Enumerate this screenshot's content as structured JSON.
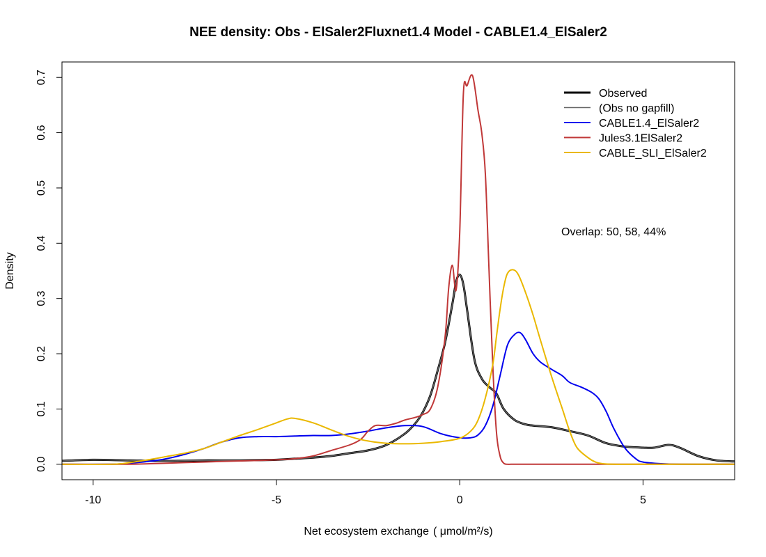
{
  "chart_data": {
    "type": "line",
    "title": "NEE density:   Obs - ElSaler2Fluxnet1.4   Model - CABLE1.4_ElSaler2",
    "xlabel_prefix": "Net ecosystem exchange",
    "xlabel_unit": "( μmol/m²/s)",
    "ylabel": "Density",
    "xlim": [
      -10.85,
      7.5
    ],
    "ylim": [
      -0.028,
      0.728
    ],
    "xticks": [
      -10,
      -5,
      0,
      5
    ],
    "xtick_labels": [
      "-10",
      "-5",
      "0",
      "5"
    ],
    "yticks": [
      0.0,
      0.1,
      0.2,
      0.3,
      0.4,
      0.5,
      0.6,
      0.7
    ],
    "ytick_labels": [
      "0.0",
      "0.1",
      "0.2",
      "0.3",
      "0.4",
      "0.5",
      "0.6",
      "0.7"
    ],
    "grid": false,
    "legend_position": "top-right",
    "annotation": "Overlap: 50, 58, 44%",
    "series": [
      {
        "name": "Observed",
        "color": "#000000",
        "width": 3,
        "x": [
          -10.9,
          -10,
          -9,
          -8,
          -7,
          -6,
          -5,
          -4.5,
          -4,
          -3.5,
          -3,
          -2.5,
          -2,
          -1.5,
          -1.2,
          -1,
          -0.8,
          -0.6,
          -0.4,
          -0.2,
          -0.1,
          0,
          0.1,
          0.2,
          0.4,
          0.6,
          0.8,
          1,
          1.2,
          1.5,
          1.8,
          2,
          2.5,
          3,
          3.5,
          4,
          4.5,
          5,
          5.3,
          5.7,
          6,
          6.5,
          7,
          7.5
        ],
        "y": [
          0.006,
          0.008,
          0.007,
          0.006,
          0.007,
          0.007,
          0.008,
          0.01,
          0.012,
          0.015,
          0.02,
          0.025,
          0.035,
          0.055,
          0.075,
          0.095,
          0.125,
          0.17,
          0.22,
          0.29,
          0.33,
          0.343,
          0.325,
          0.28,
          0.19,
          0.155,
          0.14,
          0.128,
          0.1,
          0.08,
          0.072,
          0.07,
          0.067,
          0.06,
          0.052,
          0.038,
          0.032,
          0.03,
          0.03,
          0.035,
          0.03,
          0.015,
          0.007,
          0.005
        ]
      },
      {
        "name": "(Obs no gapfill)",
        "color": "#666666",
        "width": 1.4,
        "x": [
          -10.9,
          -10,
          -9,
          -8,
          -7,
          -6,
          -5,
          -4.5,
          -4,
          -3.5,
          -3,
          -2.5,
          -2,
          -1.5,
          -1.2,
          -1,
          -0.8,
          -0.6,
          -0.4,
          -0.2,
          -0.1,
          0,
          0.1,
          0.2,
          0.4,
          0.6,
          0.8,
          1,
          1.2,
          1.5,
          1.8,
          2,
          2.5,
          3,
          3.5,
          4,
          4.5,
          5,
          5.3,
          5.7,
          6,
          6.5,
          7,
          7.5
        ],
        "y": [
          0.006,
          0.008,
          0.007,
          0.006,
          0.007,
          0.007,
          0.008,
          0.01,
          0.012,
          0.015,
          0.02,
          0.025,
          0.035,
          0.055,
          0.075,
          0.095,
          0.125,
          0.17,
          0.22,
          0.29,
          0.33,
          0.343,
          0.325,
          0.28,
          0.19,
          0.155,
          0.14,
          0.128,
          0.1,
          0.08,
          0.072,
          0.07,
          0.067,
          0.06,
          0.052,
          0.038,
          0.032,
          0.03,
          0.03,
          0.035,
          0.03,
          0.015,
          0.007,
          0.005
        ]
      },
      {
        "name": "CABLE1.4_ElSaler2",
        "color": "#0000ee",
        "width": 2,
        "x": [
          -10.9,
          -9.5,
          -9,
          -8.5,
          -8,
          -7.5,
          -7,
          -6.5,
          -6,
          -5.5,
          -5,
          -4.5,
          -4,
          -3.5,
          -3,
          -2.5,
          -2,
          -1.5,
          -1,
          -0.5,
          0,
          0.3,
          0.5,
          0.7,
          0.9,
          1.1,
          1.3,
          1.5,
          1.65,
          1.8,
          2,
          2.2,
          2.5,
          2.8,
          3,
          3.3,
          3.6,
          3.8,
          4,
          4.2,
          4.5,
          4.8,
          5,
          5.5,
          6,
          7,
          7.5
        ],
        "y": [
          0.0,
          0.0,
          0.002,
          0.005,
          0.01,
          0.018,
          0.028,
          0.04,
          0.048,
          0.05,
          0.05,
          0.051,
          0.052,
          0.052,
          0.055,
          0.06,
          0.066,
          0.07,
          0.068,
          0.055,
          0.048,
          0.048,
          0.053,
          0.07,
          0.105,
          0.16,
          0.215,
          0.235,
          0.238,
          0.225,
          0.2,
          0.185,
          0.172,
          0.16,
          0.148,
          0.14,
          0.13,
          0.118,
          0.095,
          0.065,
          0.03,
          0.01,
          0.004,
          0.001,
          0.0,
          0.0,
          0.0
        ]
      },
      {
        "name": "Jules3.1ElSaler2",
        "color": "#c03838",
        "width": 2,
        "x": [
          -10.9,
          -9,
          -8,
          -7,
          -6,
          -5,
          -4.5,
          -4,
          -3.5,
          -3,
          -2.7,
          -2.5,
          -2.3,
          -2,
          -1.7,
          -1.5,
          -1.2,
          -1,
          -0.8,
          -0.6,
          -0.4,
          -0.3,
          -0.2,
          -0.1,
          0,
          0.1,
          0.2,
          0.35,
          0.5,
          0.6,
          0.7,
          0.8,
          0.9,
          1,
          1.1,
          1.2,
          1.3,
          1.4,
          1.6,
          2,
          3,
          5,
          7.5
        ],
        "y": [
          0.0,
          0.0,
          0.002,
          0.004,
          0.006,
          0.008,
          0.01,
          0.015,
          0.025,
          0.035,
          0.045,
          0.06,
          0.07,
          0.07,
          0.075,
          0.08,
          0.085,
          0.09,
          0.1,
          0.14,
          0.23,
          0.32,
          0.36,
          0.315,
          0.42,
          0.67,
          0.685,
          0.703,
          0.64,
          0.6,
          0.525,
          0.35,
          0.18,
          0.06,
          0.015,
          0.002,
          0.0,
          0.0,
          0.0,
          0.0,
          0.0,
          0.0,
          0.0
        ]
      },
      {
        "name": "CABLE_SLI_ElSaler2",
        "color": "#eab800",
        "width": 2,
        "x": [
          -10.9,
          -9.5,
          -9,
          -8.5,
          -8,
          -7.5,
          -7,
          -6.5,
          -6,
          -5.5,
          -5,
          -4.7,
          -4.5,
          -4,
          -3.5,
          -3,
          -2.5,
          -2,
          -1.5,
          -1,
          -0.5,
          0,
          0.3,
          0.5,
          0.7,
          0.9,
          1,
          1.1,
          1.2,
          1.3,
          1.45,
          1.6,
          1.8,
          2,
          2.2,
          2.5,
          2.8,
          3,
          3.2,
          3.5,
          3.7,
          3.9,
          4.2,
          5,
          7.5
        ],
        "y": [
          0.0,
          0.0,
          0.003,
          0.008,
          0.014,
          0.02,
          0.028,
          0.04,
          0.052,
          0.063,
          0.075,
          0.082,
          0.083,
          0.075,
          0.062,
          0.05,
          0.042,
          0.038,
          0.037,
          0.038,
          0.041,
          0.047,
          0.06,
          0.08,
          0.12,
          0.18,
          0.23,
          0.28,
          0.32,
          0.345,
          0.352,
          0.343,
          0.31,
          0.27,
          0.225,
          0.16,
          0.1,
          0.06,
          0.03,
          0.012,
          0.004,
          0.001,
          0.0,
          0.0,
          0.0
        ]
      }
    ]
  }
}
